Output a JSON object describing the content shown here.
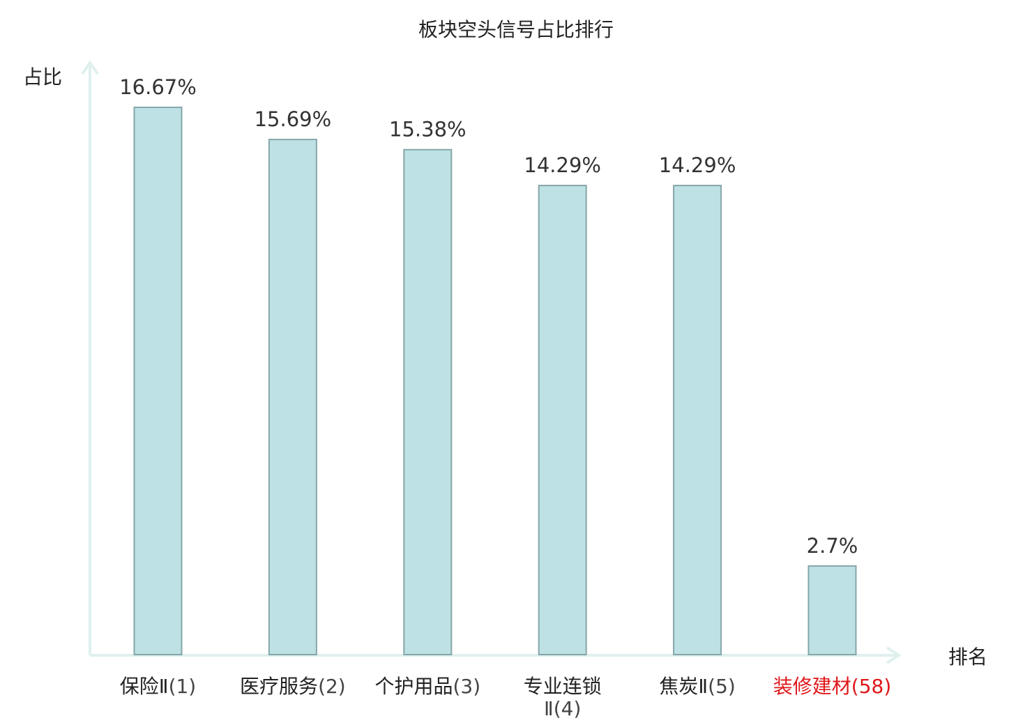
{
  "chart_data": {
    "type": "bar",
    "title": "板块空头信号占比排行",
    "ylabel": "占比",
    "xlabel": "排名",
    "categories": [
      {
        "name": "保险Ⅱ",
        "rank": "(1)"
      },
      {
        "name": "医疗服务",
        "rank": "(2)"
      },
      {
        "name": "个护用品",
        "rank": "(3)"
      },
      {
        "name": "专业连锁Ⅱ",
        "name_lines": [
          "专业连锁",
          "Ⅱ(4)"
        ],
        "rank": "(4)"
      },
      {
        "name": "焦炭Ⅱ",
        "rank": "(5)"
      },
      {
        "name": "装修建材",
        "rank": "(58)",
        "highlight": true
      }
    ],
    "values": [
      16.67,
      15.69,
      15.38,
      14.29,
      14.29,
      2.7
    ],
    "value_labels": [
      "16.67%",
      "15.69%",
      "15.38%",
      "14.29%",
      "14.29%",
      "2.7%"
    ],
    "ylim": [
      0,
      16.67
    ],
    "grid": false,
    "colors": {
      "bar_fill": "#bde1e4",
      "bar_stroke": "#86a6a9",
      "axis": "#dff0ee",
      "label_text": "#222222",
      "value_text": "#333333",
      "rank_text": "#444444",
      "highlight": "#e0181b"
    }
  }
}
